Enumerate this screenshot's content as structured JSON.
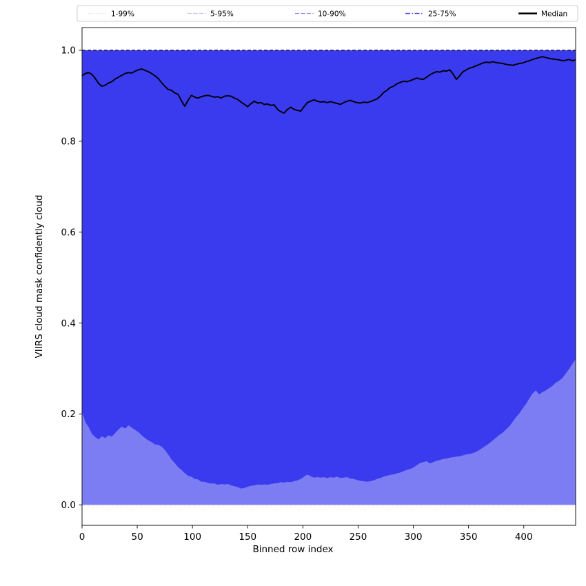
{
  "figure": {
    "xlabel": "Binned row index",
    "ylabel": "VIIRS cloud mask confidently cloud"
  },
  "legend": {
    "entries": [
      {
        "label": "1-99%",
        "color": "#e0e0fb",
        "dash": "1.5,2.5",
        "width": 1.2
      },
      {
        "label": "5-95%",
        "color": "#c4c4f7",
        "dash": "6,2.5",
        "width": 1.2
      },
      {
        "label": "10-90%",
        "color": "#8f8ff2",
        "dash": "6,2.5",
        "width": 1.3
      },
      {
        "label": "25-75%",
        "color": "#4d4de9",
        "dash": "7,2.5,1.5,2.5",
        "width": 1.5
      },
      {
        "label": "Median",
        "color": "#000000",
        "dash": "",
        "width": 2.6
      }
    ]
  },
  "chart_data": {
    "type": "area",
    "title": "",
    "xlabel": "Binned row index",
    "ylabel": "VIIRS cloud mask confidently cloud",
    "xlim": [
      0,
      447
    ],
    "ylim": [
      -0.045,
      1.05
    ],
    "xtick_values": [
      0,
      50,
      100,
      150,
      200,
      250,
      300,
      350,
      400
    ],
    "xtick_labels": [
      "0",
      "50",
      "100",
      "150",
      "200",
      "250",
      "300",
      "350",
      "400"
    ],
    "ytick_values": [
      0.0,
      0.2,
      0.4,
      0.6,
      0.8,
      1.0
    ],
    "ytick_labels": [
      "0.0",
      "0.2",
      "0.4",
      "0.6",
      "0.8",
      "1.0"
    ],
    "grid": false,
    "legend_position": "top",
    "x_start": 0,
    "x_step": 3,
    "bands": [
      {
        "label": "1-99%",
        "upper": 1.0,
        "lower": 0.0
      },
      {
        "label": "5-95%",
        "upper": 1.0,
        "lower": 0.0
      },
      {
        "label": "10-90%",
        "upper": 1.0,
        "lower": 0.0
      },
      {
        "label": "25-75%",
        "upper": 1.0,
        "lower": "p25"
      }
    ],
    "p25": [
      0.205,
      0.182,
      0.171,
      0.156,
      0.149,
      0.144,
      0.151,
      0.147,
      0.153,
      0.15,
      0.158,
      0.166,
      0.172,
      0.168,
      0.175,
      0.17,
      0.165,
      0.16,
      0.153,
      0.147,
      0.142,
      0.138,
      0.133,
      0.132,
      0.128,
      0.121,
      0.111,
      0.1,
      0.092,
      0.083,
      0.077,
      0.07,
      0.064,
      0.062,
      0.057,
      0.056,
      0.051,
      0.051,
      0.048,
      0.047,
      0.047,
      0.044,
      0.046,
      0.045,
      0.046,
      0.043,
      0.041,
      0.039,
      0.036,
      0.037,
      0.04,
      0.042,
      0.043,
      0.045,
      0.044,
      0.045,
      0.044,
      0.046,
      0.047,
      0.048,
      0.05,
      0.049,
      0.051,
      0.05,
      0.052,
      0.054,
      0.057,
      0.062,
      0.067,
      0.063,
      0.06,
      0.061,
      0.06,
      0.061,
      0.059,
      0.061,
      0.06,
      0.062,
      0.059,
      0.06,
      0.061,
      0.058,
      0.057,
      0.055,
      0.053,
      0.052,
      0.051,
      0.052,
      0.054,
      0.057,
      0.059,
      0.062,
      0.064,
      0.066,
      0.067,
      0.069,
      0.071,
      0.074,
      0.077,
      0.079,
      0.082,
      0.087,
      0.092,
      0.094,
      0.096,
      0.091,
      0.094,
      0.097,
      0.099,
      0.101,
      0.102,
      0.104,
      0.105,
      0.106,
      0.107,
      0.109,
      0.111,
      0.112,
      0.114,
      0.117,
      0.121,
      0.126,
      0.131,
      0.136,
      0.142,
      0.148,
      0.154,
      0.159,
      0.166,
      0.173,
      0.183,
      0.193,
      0.201,
      0.212,
      0.222,
      0.234,
      0.245,
      0.252,
      0.243,
      0.248,
      0.252,
      0.257,
      0.262,
      0.269,
      0.273,
      0.279,
      0.289,
      0.299,
      0.31,
      0.32
    ],
    "median": [
      0.944,
      0.949,
      0.951,
      0.947,
      0.938,
      0.927,
      0.921,
      0.923,
      0.928,
      0.931,
      0.937,
      0.941,
      0.945,
      0.949,
      0.951,
      0.95,
      0.954,
      0.957,
      0.959,
      0.956,
      0.953,
      0.949,
      0.944,
      0.938,
      0.929,
      0.921,
      0.914,
      0.912,
      0.906,
      0.903,
      0.889,
      0.877,
      0.89,
      0.901,
      0.897,
      0.895,
      0.898,
      0.9,
      0.901,
      0.899,
      0.897,
      0.898,
      0.895,
      0.899,
      0.9,
      0.899,
      0.895,
      0.892,
      0.886,
      0.881,
      0.876,
      0.883,
      0.888,
      0.884,
      0.885,
      0.881,
      0.882,
      0.879,
      0.88,
      0.87,
      0.865,
      0.862,
      0.87,
      0.875,
      0.87,
      0.868,
      0.866,
      0.876,
      0.885,
      0.888,
      0.891,
      0.888,
      0.886,
      0.887,
      0.885,
      0.887,
      0.885,
      0.883,
      0.881,
      0.885,
      0.888,
      0.89,
      0.887,
      0.885,
      0.884,
      0.886,
      0.885,
      0.887,
      0.89,
      0.893,
      0.899,
      0.907,
      0.912,
      0.918,
      0.921,
      0.926,
      0.929,
      0.932,
      0.931,
      0.933,
      0.936,
      0.939,
      0.937,
      0.936,
      0.941,
      0.946,
      0.95,
      0.953,
      0.952,
      0.955,
      0.954,
      0.957,
      0.948,
      0.936,
      0.944,
      0.953,
      0.957,
      0.961,
      0.963,
      0.966,
      0.969,
      0.972,
      0.974,
      0.973,
      0.975,
      0.973,
      0.972,
      0.971,
      0.969,
      0.968,
      0.967,
      0.969,
      0.971,
      0.972,
      0.975,
      0.977,
      0.98,
      0.982,
      0.984,
      0.986,
      0.984,
      0.982,
      0.981,
      0.98,
      0.979,
      0.977,
      0.978,
      0.98,
      0.977,
      0.979
    ],
    "colors": {
      "band_union": "#7d7df3",
      "band_core": "#3a3aee",
      "upper_boundary_line": "#0d0d3a",
      "lower_boundary_line": "#aaaaf7",
      "median": "#000000",
      "frame": "#1a1a1a",
      "legend_border": "#cccccc"
    }
  }
}
